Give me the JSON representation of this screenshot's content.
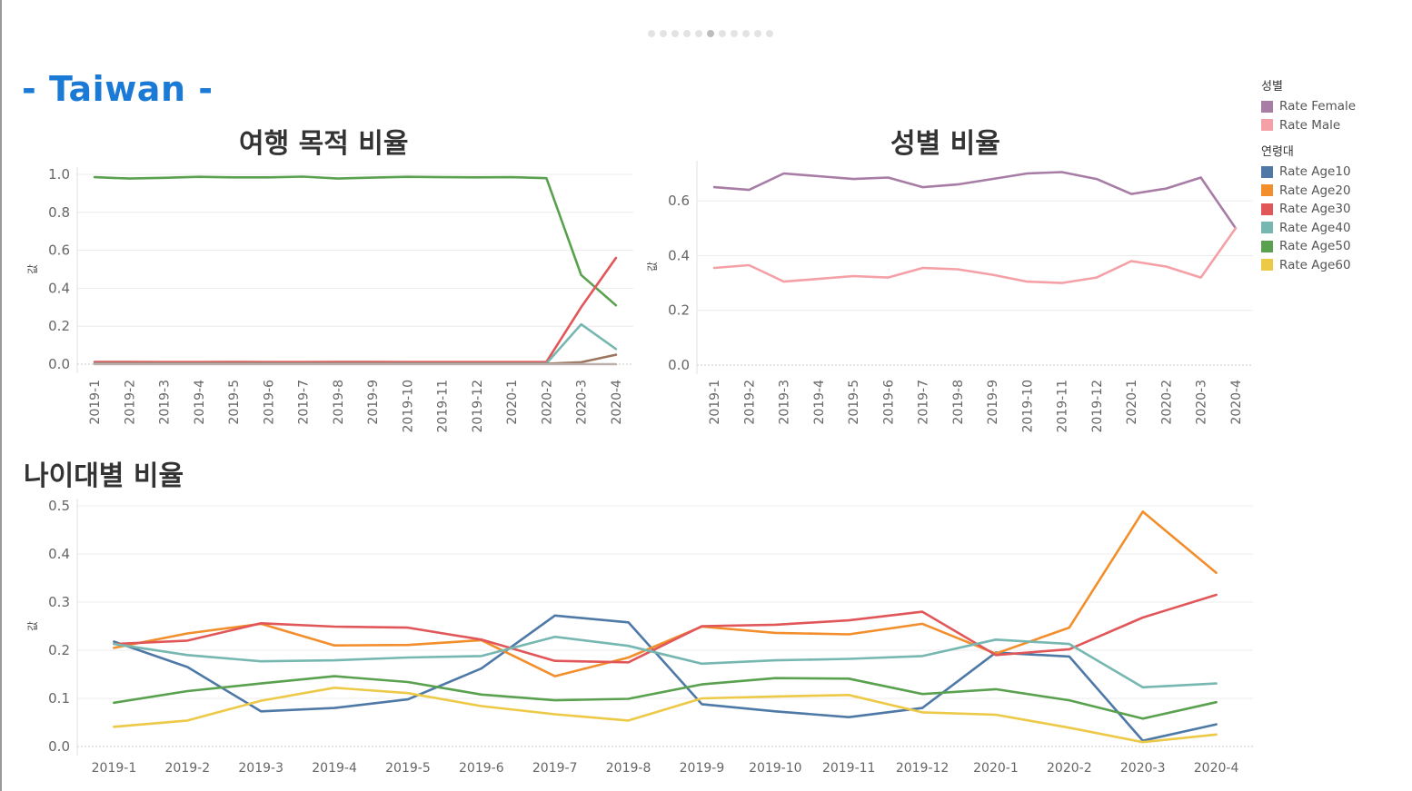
{
  "page": {
    "title": "- Taiwan -",
    "carousel": {
      "total": 11,
      "active": 6
    }
  },
  "legend": {
    "gender": {
      "title": "성별",
      "items": [
        {
          "label": "Rate Female",
          "color": "#a77ca5"
        },
        {
          "label": "Rate Male",
          "color": "#f4a0a6"
        }
      ]
    },
    "age": {
      "title": "연령대",
      "items": [
        {
          "label": "Rate Age10",
          "color": "#4e79a7"
        },
        {
          "label": "Rate Age20",
          "color": "#f28e2b"
        },
        {
          "label": "Rate Age30",
          "color": "#e15759"
        },
        {
          "label": "Rate Age40",
          "color": "#76b7b2"
        },
        {
          "label": "Rate Age50",
          "color": "#59a14f"
        },
        {
          "label": "Rate Age60",
          "color": "#edc948"
        }
      ]
    }
  },
  "chart_data": [
    {
      "id": "purpose",
      "type": "line",
      "title": "여행 목적 비율",
      "ylabel": "값",
      "ylim": [
        0,
        1.0
      ],
      "yticks": [
        0.0,
        0.2,
        0.4,
        0.6,
        0.8,
        1.0
      ],
      "ytick_labels": [
        "0.0",
        "0.2",
        "0.4",
        "0.6",
        "0.8",
        "1.0"
      ],
      "x": [
        "2019-1",
        "2019-2",
        "2019-3",
        "2019-4",
        "2019-5",
        "2019-6",
        "2019-7",
        "2019-8",
        "2019-9",
        "2019-10",
        "2019-11",
        "2019-12",
        "2020-1",
        "2020-2",
        "2020-3",
        "2020-4"
      ],
      "series": [
        {
          "color": "#59a14f",
          "values": [
            0.985,
            0.978,
            0.982,
            0.987,
            0.984,
            0.984,
            0.988,
            0.978,
            0.983,
            0.987,
            0.985,
            0.984,
            0.985,
            0.98,
            0.47,
            0.31
          ]
        },
        {
          "color": "#e15759",
          "values": [
            0.012,
            0.012,
            0.011,
            0.011,
            0.012,
            0.011,
            0.011,
            0.012,
            0.012,
            0.011,
            0.011,
            0.011,
            0.011,
            0.012,
            0.3,
            0.56
          ]
        },
        {
          "color": "#76b7b2",
          "values": [
            0.004,
            0.004,
            0.004,
            0.004,
            0.004,
            0.004,
            0.004,
            0.004,
            0.004,
            0.004,
            0.004,
            0.004,
            0.004,
            0.004,
            0.21,
            0.08
          ]
        },
        {
          "color": "#9c755f",
          "values": [
            0.002,
            0.002,
            0.002,
            0.002,
            0.002,
            0.002,
            0.002,
            0.002,
            0.002,
            0.002,
            0.002,
            0.002,
            0.002,
            0.002,
            0.01,
            0.05
          ]
        },
        {
          "color": "#bab0ac",
          "values": [
            0.0,
            0.0,
            0.0,
            0.0,
            0.0,
            0.0,
            0.0,
            0.0,
            0.0,
            0.0,
            0.0,
            0.0,
            0.0,
            0.0,
            0.0,
            0.0
          ]
        }
      ]
    },
    {
      "id": "gender",
      "type": "line",
      "title": "성별 비율",
      "ylabel": "값",
      "ylim": [
        0,
        0.72
      ],
      "yticks": [
        0.0,
        0.2,
        0.4,
        0.6
      ],
      "ytick_labels": [
        "0.0",
        "0.2",
        "0.4",
        "0.6"
      ],
      "x": [
        "2019-1",
        "2019-2",
        "2019-3",
        "2019-4",
        "2019-5",
        "2019-6",
        "2019-7",
        "2019-8",
        "2019-9",
        "2019-10",
        "2019-11",
        "2019-12",
        "2020-1",
        "2020-2",
        "2020-3",
        "2020-4"
      ],
      "series": [
        {
          "name": "Rate Female",
          "color": "#a77ca5",
          "values": [
            0.65,
            0.64,
            0.7,
            0.69,
            0.68,
            0.685,
            0.65,
            0.66,
            0.68,
            0.7,
            0.705,
            0.68,
            0.625,
            0.645,
            0.685,
            0.5
          ]
        },
        {
          "name": "Rate Male",
          "color": "#f4a0a6",
          "values": [
            0.355,
            0.365,
            0.305,
            0.315,
            0.325,
            0.32,
            0.355,
            0.35,
            0.33,
            0.305,
            0.3,
            0.32,
            0.38,
            0.36,
            0.32,
            0.5
          ]
        }
      ]
    },
    {
      "id": "age",
      "type": "line",
      "title": "나이대별 비율",
      "ylabel": "값",
      "ylim": [
        0,
        0.5
      ],
      "yticks": [
        0.0,
        0.1,
        0.2,
        0.3,
        0.4,
        0.5
      ],
      "ytick_labels": [
        "0.0",
        "0.1",
        "0.2",
        "0.3",
        "0.4",
        "0.5"
      ],
      "x": [
        "2019-1",
        "2019-2",
        "2019-3",
        "2019-4",
        "2019-5",
        "2019-6",
        "2019-7",
        "2019-8",
        "2019-9",
        "2019-10",
        "2019-11",
        "2019-12",
        "2020-1",
        "2020-2",
        "2020-3",
        "2020-4"
      ],
      "series": [
        {
          "name": "Rate Age10",
          "color": "#4e79a7",
          "values": [
            0.218,
            0.165,
            0.073,
            0.08,
            0.098,
            0.162,
            0.272,
            0.258,
            0.088,
            0.073,
            0.061,
            0.08,
            0.195,
            0.187,
            0.012,
            0.046
          ]
        },
        {
          "name": "Rate Age20",
          "color": "#f28e2b",
          "values": [
            0.205,
            0.235,
            0.255,
            0.21,
            0.211,
            0.221,
            0.146,
            0.185,
            0.249,
            0.236,
            0.233,
            0.255,
            0.193,
            0.247,
            0.488,
            0.361
          ]
        },
        {
          "name": "Rate Age30",
          "color": "#e15759",
          "values": [
            0.213,
            0.22,
            0.256,
            0.249,
            0.247,
            0.222,
            0.178,
            0.175,
            0.25,
            0.253,
            0.262,
            0.28,
            0.19,
            0.202,
            0.268,
            0.315
          ]
        },
        {
          "name": "Rate Age40",
          "color": "#76b7b2",
          "values": [
            0.213,
            0.19,
            0.177,
            0.179,
            0.185,
            0.188,
            0.228,
            0.209,
            0.172,
            0.179,
            0.182,
            0.188,
            0.222,
            0.213,
            0.123,
            0.131
          ]
        },
        {
          "name": "Rate Age50",
          "color": "#59a14f",
          "values": [
            0.091,
            0.115,
            0.131,
            0.146,
            0.134,
            0.108,
            0.096,
            0.099,
            0.129,
            0.142,
            0.141,
            0.109,
            0.119,
            0.096,
            0.058,
            0.092
          ]
        },
        {
          "name": "Rate Age60",
          "color": "#edc948",
          "values": [
            0.041,
            0.054,
            0.095,
            0.122,
            0.111,
            0.084,
            0.067,
            0.054,
            0.1,
            0.104,
            0.107,
            0.071,
            0.066,
            0.039,
            0.009,
            0.025
          ]
        }
      ]
    }
  ]
}
